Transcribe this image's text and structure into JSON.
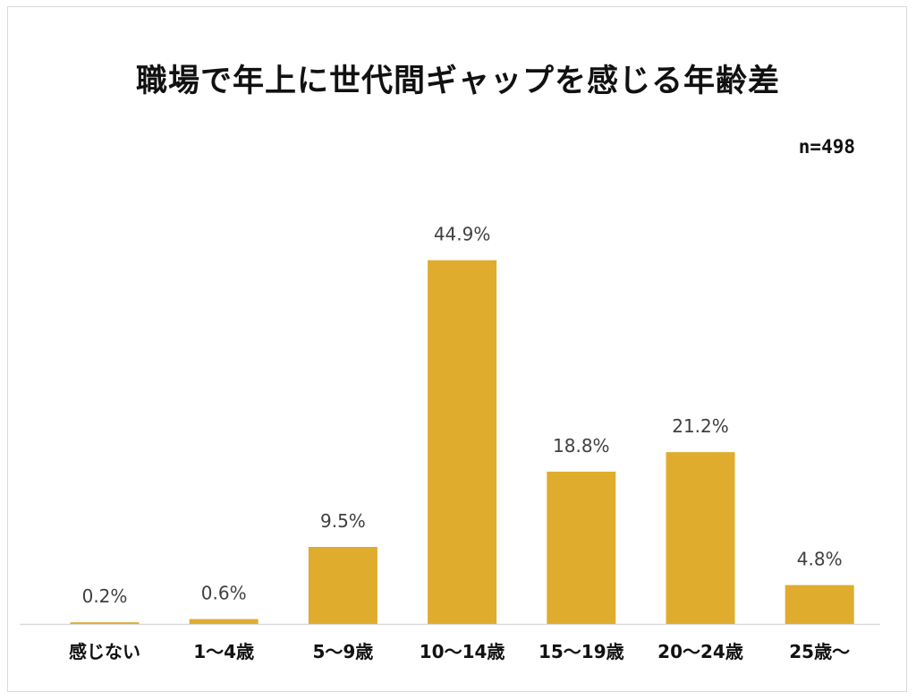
{
  "chart_data": {
    "type": "bar",
    "title": "職場で年上に世代間ギャップを感じる年齢差",
    "note": "n=498",
    "categories": [
      "感じない",
      "1～4歳",
      "5～9歳",
      "10～14歳",
      "15～19歳",
      "20～24歳",
      "25歳～"
    ],
    "values": [
      0.2,
      0.6,
      9.5,
      44.9,
      18.8,
      21.2,
      4.8
    ],
    "value_labels": [
      "0.2%",
      "0.6%",
      "9.5%",
      "44.9%",
      "18.8%",
      "21.2%",
      "4.8%"
    ],
    "bar_color": "#e0ac2e",
    "axis_color": "#d9d9d9",
    "grid": false,
    "legend": "none"
  }
}
